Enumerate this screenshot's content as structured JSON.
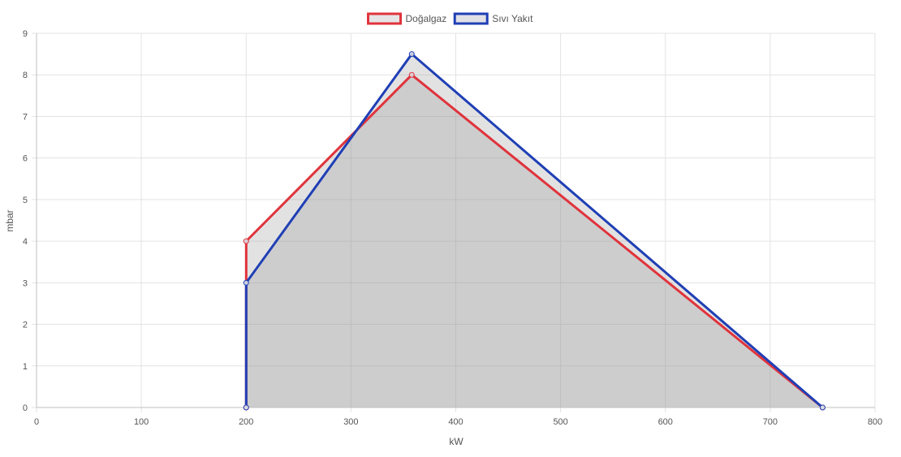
{
  "chart_data": {
    "type": "area",
    "xlabel": "kW",
    "ylabel": "mbar",
    "xlim": [
      0,
      800
    ],
    "ylim": [
      0,
      9
    ],
    "x_ticks": [
      0,
      100,
      200,
      300,
      400,
      500,
      600,
      700,
      800
    ],
    "y_ticks": [
      0,
      1,
      2,
      3,
      4,
      5,
      6,
      7,
      8,
      9
    ],
    "grid": true,
    "legend_position": "top-center",
    "series": [
      {
        "name": "Doğalgaz",
        "color": "#e0333c",
        "fill": "#e6e4e6",
        "points": [
          [
            200,
            0
          ],
          [
            200,
            4
          ],
          [
            358,
            8
          ],
          [
            750,
            0
          ]
        ]
      },
      {
        "name": "Sıvı Yakıt",
        "color": "#1f3fb5",
        "fill": "#e0e0e6",
        "points": [
          [
            200,
            0
          ],
          [
            200,
            3
          ],
          [
            358,
            8.5
          ],
          [
            750,
            0
          ]
        ]
      }
    ]
  }
}
